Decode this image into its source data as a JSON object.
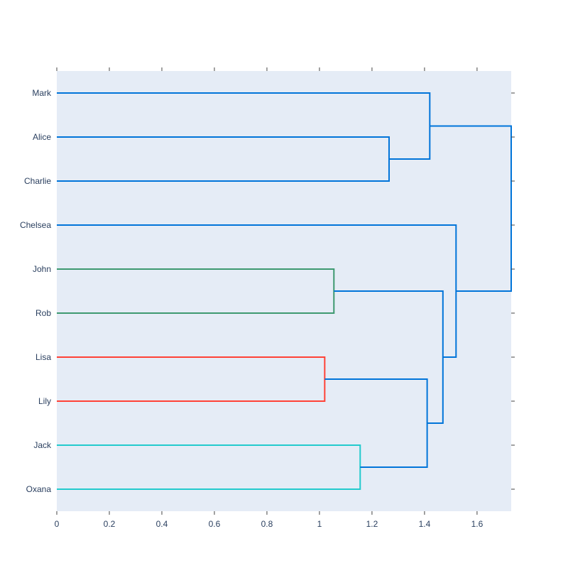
{
  "chart_data": {
    "type": "dendrogram",
    "orientation": "horizontal",
    "leaves": [
      "Mark",
      "Alice",
      "Charlie",
      "Chelsea",
      "John",
      "Rob",
      "Lisa",
      "Lily",
      "Jack",
      "Oxana"
    ],
    "x_ticks": [
      0,
      0.2,
      0.4,
      0.6,
      0.8,
      1,
      1.2,
      1.4,
      1.6
    ],
    "x_tick_labels": [
      "0",
      "0.2",
      "0.4",
      "0.6",
      "0.8",
      "1",
      "1.2",
      "1.4",
      "1.6"
    ],
    "xlim": [
      0,
      1.73
    ],
    "title": "",
    "xlabel": "",
    "ylabel": "",
    "grid": false,
    "merges": [
      {
        "left": "John",
        "right": "Rob",
        "height": 1.055,
        "color": "#3d9970"
      },
      {
        "left": "Lisa",
        "right": "Lily",
        "height": 1.02,
        "color": "#ff4136"
      },
      {
        "left": "Jack",
        "right": "Oxana",
        "height": 1.155,
        "color": "#23cacd"
      },
      {
        "left": "Alice",
        "right": "Charlie",
        "height": 1.265,
        "color": "#0074d9"
      },
      {
        "left": "Lisa+Lily",
        "right": "Jack+Oxana",
        "height": 1.41,
        "color": "#0074d9"
      },
      {
        "left": "Mark",
        "right": "Alice+Charlie",
        "height": 1.42,
        "color": "#0074d9"
      },
      {
        "left": "John+Rob",
        "right": "Lisa+Lily+Jack+Oxana",
        "height": 1.47,
        "color": "#0074d9"
      },
      {
        "left": "Chelsea",
        "right": "John+Rob+Lisa+Lily+Jack+Oxana",
        "height": 1.52,
        "color": "#0074d9"
      },
      {
        "left": "Mark+Alice+Charlie",
        "right": "Chelsea+John+Rob+Lisa+Lily+Jack+Oxana",
        "height": 1.73,
        "color": "#0074d9"
      }
    ],
    "colors": {
      "plot_background": "#e5ecf6",
      "axis_text": "#2a3f5f",
      "tick_mark": "#444444"
    }
  }
}
